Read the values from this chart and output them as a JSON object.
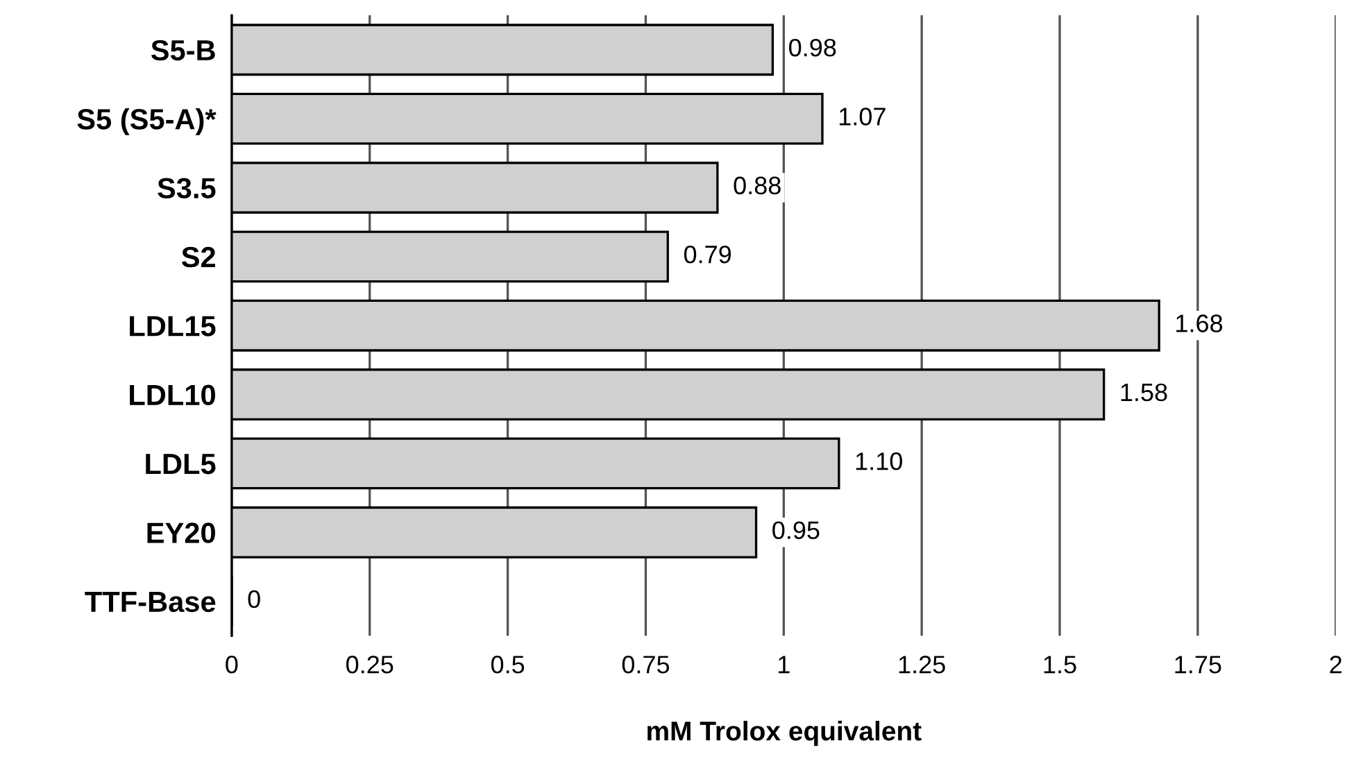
{
  "chart_data": {
    "type": "bar",
    "orientation": "horizontal",
    "xlabel": "mM Trolox equivalent",
    "categories": [
      "S5-B",
      "S5 (S5-A)*",
      "S3.5",
      "S2",
      "LDL15",
      "LDL10",
      "LDL5",
      "EY20",
      "TTF-Base"
    ],
    "values": [
      0.98,
      1.07,
      0.88,
      0.79,
      1.68,
      1.58,
      1.1,
      0.95,
      0
    ],
    "value_labels": [
      "0.98",
      "1.07",
      "0.88",
      "0.79",
      "1.68",
      "1.58",
      "1.10",
      "0.95",
      "0"
    ],
    "color": "#d0d0d0",
    "xlim": [
      0,
      2
    ],
    "xticks": [
      0,
      0.25,
      0.5,
      0.75,
      1,
      1.25,
      1.5,
      1.75,
      2
    ],
    "grid": "x",
    "legend": false
  }
}
